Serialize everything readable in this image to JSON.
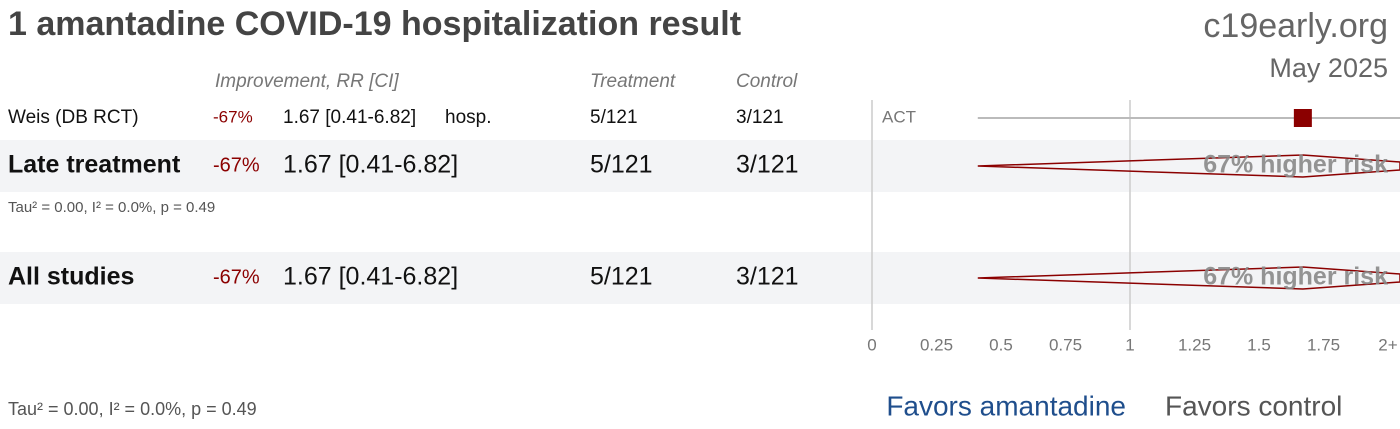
{
  "chart_data": {
    "type": "forest",
    "title": "1 amantadine COVID-19 hospitalization result",
    "source": "c19early.org",
    "date": "May 2025",
    "columns": {
      "effect": "Improvement, RR [CI]",
      "treatment": "Treatment",
      "control": "Control"
    },
    "xlim": [
      0,
      2
    ],
    "xticks": [
      0,
      0.25,
      0.5,
      0.75,
      1,
      1.25,
      1.5,
      1.75,
      {
        "value": 2,
        "label": "2+"
      }
    ],
    "color": "#8b0000",
    "favors": [
      {
        "label": "Favors amantadine",
        "color": "#1f4e8c"
      },
      {
        "label": "Favors control",
        "color": "#555555"
      }
    ],
    "studies": [
      {
        "name": "Weis (DB RCT)",
        "improvement": "-67%",
        "rr": 1.67,
        "ci": [
          0.41,
          6.82
        ],
        "rr_label": "1.67 [0.41-6.82]",
        "outcome": "hosp.",
        "treatment": "5/121",
        "control": "3/121",
        "tag": "ACT"
      }
    ],
    "groups": [
      {
        "name": "Late treatment",
        "improvement": "-67%",
        "rr": 1.67,
        "ci": [
          0.41,
          6.82
        ],
        "rr_label": "1.67 [0.41-6.82]",
        "treatment": "5/121",
        "control": "3/121",
        "effect_label": "67% higher risk",
        "heterogeneity": "Tau² = 0.00, I² = 0.0%, p = 0.49"
      }
    ],
    "overall": {
      "name": "All studies",
      "improvement": "-67%",
      "rr": 1.67,
      "ci": [
        0.41,
        6.82
      ],
      "rr_label": "1.67 [0.41-6.82]",
      "treatment": "5/121",
      "control": "3/121",
      "effect_label": "67% higher risk",
      "heterogeneity": "Tau² = 0.00, I² = 0.0%, p = 0.49"
    }
  }
}
